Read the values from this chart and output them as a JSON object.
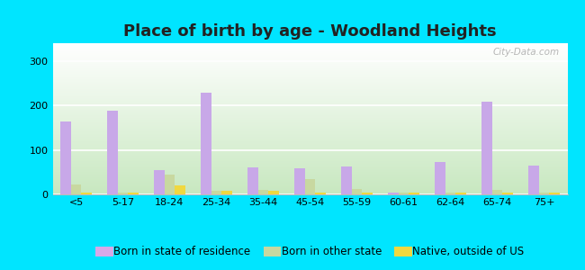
{
  "title": "Place of birth by age - Woodland Heights",
  "categories": [
    "<5",
    "5-17",
    "18-24",
    "25-34",
    "35-44",
    "45-54",
    "55-59",
    "60-61",
    "62-64",
    "65-74",
    "75+"
  ],
  "born_in_state": [
    163,
    188,
    55,
    228,
    60,
    58,
    62,
    5,
    72,
    208,
    65
  ],
  "born_other_state": [
    22,
    5,
    45,
    8,
    10,
    35,
    13,
    5,
    5,
    10,
    5
  ],
  "native_outside_us": [
    5,
    5,
    20,
    8,
    8,
    5,
    5,
    5,
    5,
    5,
    5
  ],
  "bar_color_state": "#c8a8e8",
  "bar_color_other": "#c8d8a0",
  "bar_color_native": "#f0d840",
  "background_color_fig": "#00e5ff",
  "ylim": [
    0,
    340
  ],
  "yticks": [
    0,
    100,
    200,
    300
  ],
  "legend_labels": [
    "Born in state of residence",
    "Born in other state",
    "Native, outside of US"
  ],
  "legend_colors": [
    "#d8a8e8",
    "#c8d8a0",
    "#f0d840"
  ],
  "watermark": "City-Data.com",
  "title_fontsize": 13,
  "tick_fontsize": 8,
  "legend_fontsize": 8.5
}
